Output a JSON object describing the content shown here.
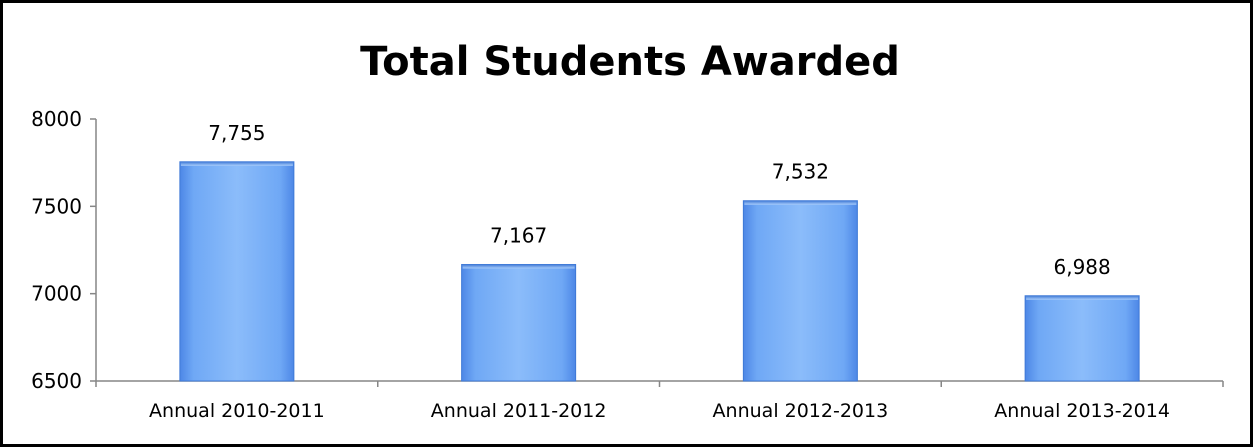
{
  "chart_data": {
    "type": "bar",
    "title": "Total Students Awarded",
    "categories": [
      "Annual 2010-2011",
      "Annual 2011-2012",
      "Annual 2012-2013",
      "Annual 2013-2014"
    ],
    "values": [
      7755,
      7167,
      7532,
      6988
    ],
    "data_labels": [
      "7,755",
      "7,167",
      "7,532",
      "6,988"
    ],
    "y_ticks": [
      6500,
      7000,
      7500,
      8000
    ],
    "ylim": [
      6500,
      8000
    ],
    "xlabel": "",
    "ylabel": "",
    "grid": false,
    "legend": "none",
    "bar_color": "#6fa8f5",
    "bar_edge_color": "#3f79d6"
  }
}
